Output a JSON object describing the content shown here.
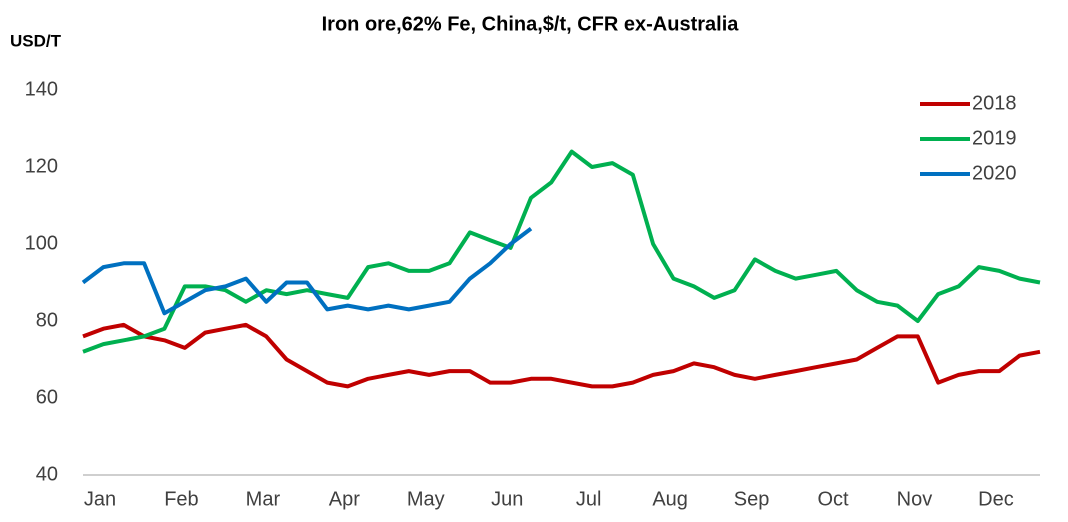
{
  "chart_data": {
    "type": "line",
    "title": "Iron ore,62% Fe, China,$/t, CFR ex-Australia",
    "y_label": "USD/T",
    "categories": [
      "Jan",
      null,
      null,
      null,
      "Feb",
      null,
      null,
      null,
      "Mar",
      null,
      null,
      null,
      "Apr",
      null,
      null,
      null,
      "May",
      null,
      null,
      null,
      "Jun",
      null,
      null,
      null,
      "Jul",
      null,
      null,
      null,
      "Aug",
      null,
      null,
      null,
      "Sep",
      null,
      null,
      null,
      "Oct",
      null,
      null,
      null,
      "Nov",
      null,
      null,
      null,
      "Dec",
      null,
      null,
      null
    ],
    "series": [
      {
        "name": "2018",
        "color": "#c00000",
        "values": [
          76,
          78,
          79,
          76,
          75,
          73,
          77,
          78,
          79,
          76,
          70,
          67,
          64,
          63,
          65,
          66,
          67,
          66,
          67,
          67,
          64,
          64,
          65,
          65,
          64,
          63,
          63,
          64,
          66,
          67,
          69,
          68,
          66,
          65,
          66,
          67,
          68,
          69,
          70,
          73,
          76,
          76,
          64,
          66,
          67,
          67,
          71,
          72
        ]
      },
      {
        "name": "2019",
        "color": "#00b050",
        "values": [
          72,
          74,
          75,
          76,
          78,
          89,
          89,
          88,
          85,
          88,
          87,
          88,
          87,
          86,
          94,
          95,
          93,
          93,
          95,
          103,
          101,
          99,
          112,
          116,
          124,
          120,
          121,
          118,
          100,
          91,
          89,
          86,
          88,
          96,
          93,
          91,
          92,
          93,
          88,
          85,
          84,
          80,
          87,
          89,
          94,
          93,
          91,
          90
        ]
      },
      {
        "name": "2020",
        "color": "#0070c0",
        "values": [
          90,
          94,
          95,
          95,
          82,
          85,
          88,
          89,
          91,
          85,
          90,
          90,
          83,
          84,
          83,
          84,
          83,
          84,
          85,
          91,
          95,
          100,
          104,
          null,
          null,
          null,
          null,
          null,
          null,
          null,
          null,
          null,
          null,
          null,
          null,
          null,
          null,
          null,
          null,
          null,
          null,
          null,
          null,
          null,
          null,
          null,
          null,
          null
        ]
      }
    ],
    "ylim": [
      40,
      140
    ],
    "yticks": [
      40,
      60,
      80,
      100,
      120,
      140
    ],
    "grid": false,
    "legend": "upper right"
  }
}
